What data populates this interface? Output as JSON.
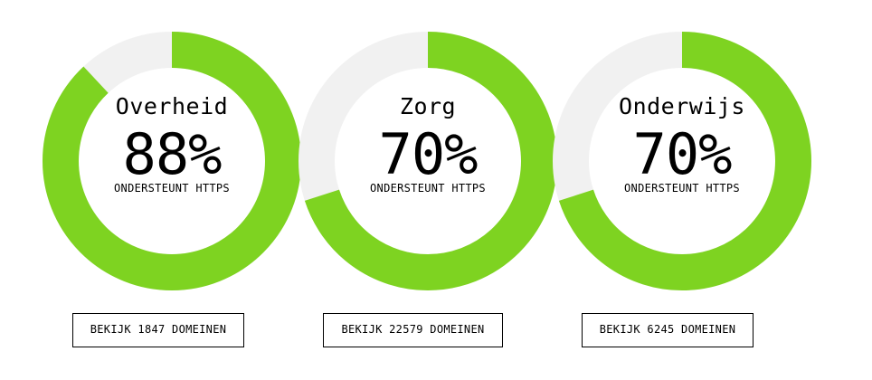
{
  "colors": {
    "accent": "#7ed321",
    "track": "#f1f1f1"
  },
  "cards": [
    {
      "label": "Overheid",
      "percent": 88,
      "percent_text": "88%",
      "subtitle": "ONDERSTEUNT HTTPS",
      "button_label": "BEKIJK 1847 DOMEINEN"
    },
    {
      "label": "Zorg",
      "percent": 70,
      "percent_text": "70%",
      "subtitle": "ONDERSTEUNT HTTPS",
      "button_label": "BEKIJK 22579 DOMEINEN"
    },
    {
      "label": "Onderwijs",
      "percent": 70,
      "percent_text": "70%",
      "subtitle": "ONDERSTEUNT HTTPS",
      "button_label": "BEKIJK 6245 DOMEINEN"
    }
  ]
}
